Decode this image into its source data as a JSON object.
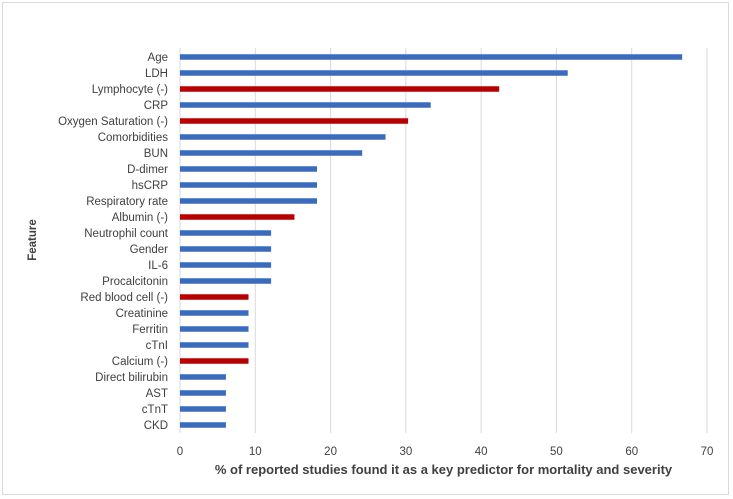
{
  "chart_data": {
    "type": "bar",
    "orientation": "horizontal",
    "title": "",
    "xlabel": "% of reported studies found it as a key predictor for mortality and severity",
    "ylabel": "Feature",
    "xlim": [
      0,
      70
    ],
    "xticks": [
      0,
      10,
      20,
      30,
      40,
      50,
      60,
      70
    ],
    "grid": "vertical",
    "legend": "none",
    "colors": {
      "positive": "#3a6bbf",
      "negative": "#b80000"
    },
    "categories": [
      "Age",
      "LDH",
      "Lymphocyte (-)",
      "CRP",
      "Oxygen Saturation (-)",
      "Comorbidities",
      "BUN",
      "D-dimer",
      "hsCRP",
      "Respiratory rate",
      "Albumin (-)",
      "Neutrophil count",
      "Gender",
      "IL-6",
      "Procalcitonin",
      "Red blood cell (-)",
      "Creatinine",
      "Ferritin",
      "cTnI",
      "Calcium (-)",
      "Direct bilirubin",
      "AST",
      "cTnT",
      "CKD"
    ],
    "values": [
      66.7,
      51.5,
      42.4,
      33.3,
      30.3,
      27.3,
      24.2,
      18.2,
      18.2,
      18.2,
      15.2,
      12.1,
      12.1,
      12.1,
      12.1,
      9.1,
      9.1,
      9.1,
      9.1,
      9.1,
      6.1,
      6.1,
      6.1,
      6.1
    ],
    "negative": [
      false,
      false,
      true,
      false,
      true,
      false,
      false,
      false,
      false,
      false,
      true,
      false,
      false,
      false,
      false,
      true,
      false,
      false,
      false,
      true,
      false,
      false,
      false,
      false
    ]
  }
}
